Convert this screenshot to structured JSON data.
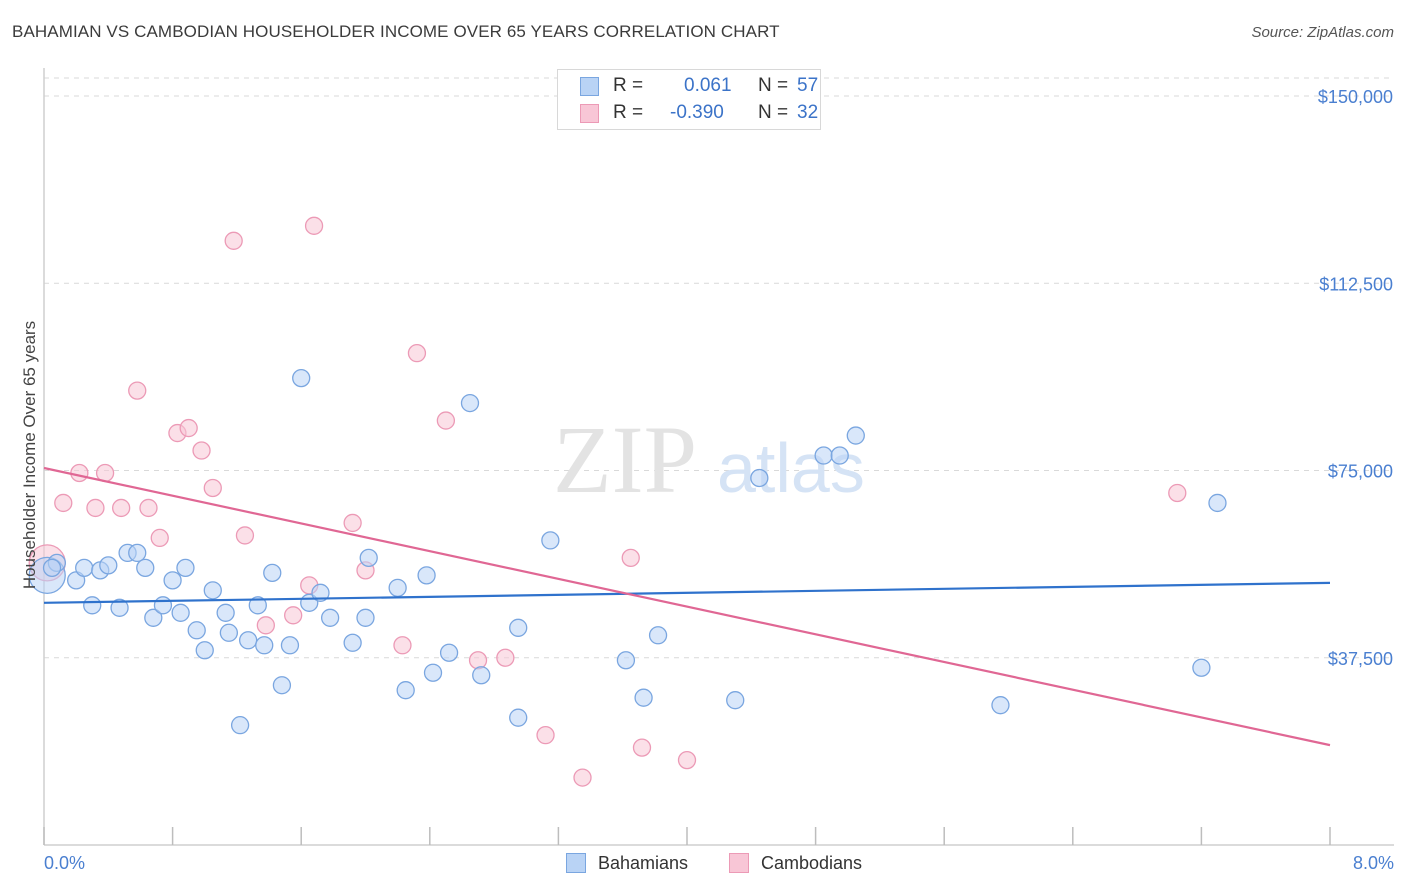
{
  "title": "BAHAMIAN VS CAMBODIAN HOUSEHOLDER INCOME OVER 65 YEARS CORRELATION CHART",
  "source": "Source: ZipAtlas.com",
  "watermark": {
    "zip": "ZIP",
    "atlas": "atlas"
  },
  "legend_top": {
    "rows": [
      {
        "r_label": "R =",
        "r_value": "0.061",
        "n_label": "N =",
        "n_value": "57"
      },
      {
        "r_label": "R =",
        "r_value": "-0.390",
        "n_label": "N =",
        "n_value": "32"
      }
    ]
  },
  "legend_bottom": {
    "series1": "Bahamians",
    "series2": "Cambodians"
  },
  "colors": {
    "bahamians_fill": "#b9d3f5",
    "bahamians_stroke": "#7aa6e0",
    "bahamians_line": "#2f72cc",
    "cambodians_fill": "#f8c6d6",
    "cambodians_stroke": "#ec9ab6",
    "cambodians_line": "#e06794",
    "tick_label": "#4a7fd0",
    "grid": "#d9d9d9"
  },
  "chart_data": {
    "type": "scatter",
    "title": "BAHAMIAN VS CAMBODIAN HOUSEHOLDER INCOME OVER 65 YEARS CORRELATION CHART",
    "xlabel": "",
    "ylabel": "Householder Income Over 65 years",
    "xlim": [
      0,
      8
    ],
    "ylim": [
      0,
      155000
    ],
    "x_tick_labels": [
      "0.0%",
      "8.0%"
    ],
    "y_ticks": [
      37500,
      75000,
      112500,
      150000
    ],
    "y_tick_labels": [
      "$37,500",
      "$75,000",
      "$112,500",
      "$150,000"
    ],
    "grid": "horizontal dashed",
    "legend_position": "top-center",
    "series": [
      {
        "name": "Bahamians",
        "r": 0.061,
        "n": 57,
        "trend": [
          [
            0,
            48500
          ],
          [
            8,
            52500
          ]
        ],
        "points": [
          [
            0.02,
            54000
          ],
          [
            0.08,
            56500
          ],
          [
            0.2,
            53000
          ],
          [
            0.25,
            55500
          ],
          [
            0.3,
            48000
          ],
          [
            0.35,
            55000
          ],
          [
            0.4,
            56000
          ],
          [
            0.47,
            47500
          ],
          [
            0.52,
            58500
          ],
          [
            0.58,
            58500
          ],
          [
            0.63,
            55500
          ],
          [
            0.68,
            45500
          ],
          [
            0.74,
            48000
          ],
          [
            0.8,
            53000
          ],
          [
            0.85,
            46500
          ],
          [
            0.88,
            55500
          ],
          [
            0.95,
            43000
          ],
          [
            1.0,
            39000
          ],
          [
            1.05,
            51000
          ],
          [
            1.13,
            46500
          ],
          [
            1.15,
            42500
          ],
          [
            1.22,
            24000
          ],
          [
            1.27,
            41000
          ],
          [
            1.33,
            48000
          ],
          [
            1.37,
            40000
          ],
          [
            1.42,
            54500
          ],
          [
            1.48,
            32000
          ],
          [
            1.53,
            40000
          ],
          [
            1.6,
            93500
          ],
          [
            1.65,
            48500
          ],
          [
            1.72,
            50500
          ],
          [
            1.78,
            45500
          ],
          [
            1.92,
            40500
          ],
          [
            2.0,
            45500
          ],
          [
            2.02,
            57500
          ],
          [
            2.2,
            51500
          ],
          [
            2.25,
            31000
          ],
          [
            2.38,
            54000
          ],
          [
            2.42,
            34500
          ],
          [
            2.52,
            38500
          ],
          [
            2.65,
            88500
          ],
          [
            2.72,
            34000
          ],
          [
            2.95,
            25500
          ],
          [
            2.95,
            43500
          ],
          [
            3.15,
            61000
          ],
          [
            3.62,
            37000
          ],
          [
            3.73,
            29500
          ],
          [
            3.82,
            42000
          ],
          [
            4.3,
            29000
          ],
          [
            4.45,
            73500
          ],
          [
            4.85,
            78000
          ],
          [
            4.95,
            78000
          ],
          [
            5.05,
            82000
          ],
          [
            5.95,
            28000
          ],
          [
            7.2,
            35500
          ],
          [
            7.3,
            68500
          ],
          [
            0.05,
            55500
          ]
        ]
      },
      {
        "name": "Cambodians",
        "r": -0.39,
        "n": 32,
        "trend": [
          [
            0,
            75500
          ],
          [
            8,
            20000
          ]
        ],
        "points": [
          [
            0.02,
            56500
          ],
          [
            0.12,
            68500
          ],
          [
            0.22,
            74500
          ],
          [
            0.32,
            67500
          ],
          [
            0.38,
            74500
          ],
          [
            0.48,
            67500
          ],
          [
            0.58,
            91000
          ],
          [
            0.65,
            67500
          ],
          [
            0.72,
            61500
          ],
          [
            0.83,
            82500
          ],
          [
            0.9,
            83500
          ],
          [
            0.98,
            79000
          ],
          [
            1.05,
            71500
          ],
          [
            1.18,
            121000
          ],
          [
            1.25,
            62000
          ],
          [
            1.38,
            44000
          ],
          [
            1.55,
            46000
          ],
          [
            1.65,
            52000
          ],
          [
            1.68,
            124000
          ],
          [
            1.92,
            64500
          ],
          [
            2.0,
            55000
          ],
          [
            2.23,
            40000
          ],
          [
            2.32,
            98500
          ],
          [
            2.5,
            85000
          ],
          [
            2.7,
            37000
          ],
          [
            2.87,
            37500
          ],
          [
            3.12,
            22000
          ],
          [
            3.35,
            13500
          ],
          [
            3.65,
            57500
          ],
          [
            3.72,
            19500
          ],
          [
            4.0,
            17000
          ],
          [
            7.05,
            70500
          ]
        ]
      }
    ]
  }
}
